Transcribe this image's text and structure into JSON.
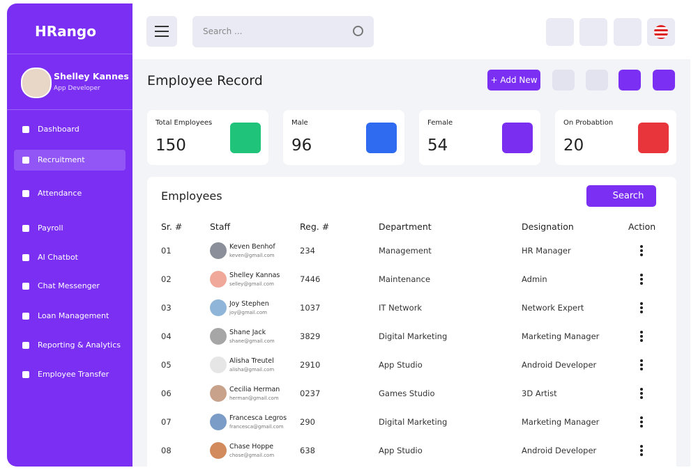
{
  "brand": "HRango",
  "user": {
    "name": "Shelley Kannes",
    "role": "App Developer"
  },
  "nav": [
    "Dashboard",
    "Recruitment",
    "Attendance",
    "Payroll",
    "AI Chatbot",
    "Chat Messenger",
    "Loan Management",
    "Reporting & Analytics",
    "Employee Transfer"
  ],
  "active_nav": 1,
  "search_placeholder": "Search ...",
  "page_title": "Employee Record",
  "add_button": "+ Add New",
  "stats": [
    {
      "label": "Total Employees",
      "value": 150,
      "color": "#1fc37a"
    },
    {
      "label": "Male",
      "value": 96,
      "color": "#2f6bf0"
    },
    {
      "label": "Female",
      "value": 54,
      "color": "#7a2ff0"
    },
    {
      "label": "On Probabtion",
      "value": 20,
      "color": "#e8353b"
    }
  ],
  "table": {
    "title": "Employees",
    "search_button": "Search",
    "columns": [
      "Sr. #",
      "Staff",
      "Reg. #",
      "Department",
      "Designation",
      "Action"
    ],
    "rows": [
      [
        "01",
        "Keven Benhof",
        "keven@gmail.com",
        "234",
        "Management",
        "HR Manager"
      ],
      [
        "02",
        "Shelley Kannas",
        "selley@gmail.com",
        "7446",
        "Maintenance",
        "Admin"
      ],
      [
        "03",
        "Joy Stephen",
        "joy@gmail.com",
        "1037",
        "IT Network",
        "Network Expert"
      ],
      [
        "04",
        "Shane Jack",
        "shane@gmail.com",
        "3829",
        "Digital Marketing",
        "Marketing Manager"
      ],
      [
        "05",
        "Alisha Treutel",
        "alisha@gmail.com",
        "2910",
        "App Studio",
        "Android Developer"
      ],
      [
        "06",
        "Cecilia Herman",
        "herman@gmail.com",
        "0237",
        "Games Studio",
        "3D Artist"
      ],
      [
        "07",
        "Francesca Legros",
        "francesca@gmail.com",
        "290",
        "Digital Marketing",
        "Marketing Manager"
      ],
      [
        "08",
        "Chase Hoppe",
        "chose@gmail.com",
        "638",
        "App Studio",
        "Android Developer"
      ]
    ]
  }
}
